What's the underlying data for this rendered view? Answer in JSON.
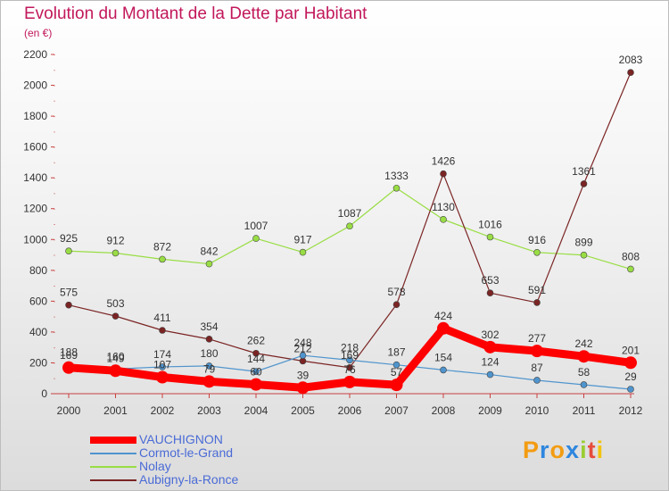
{
  "title": "Evolution du Montant de la Dette par Habitant",
  "subtitle": "(en €)",
  "brand": {
    "letters": [
      "P",
      "r",
      "o",
      "x",
      "i",
      "t",
      "i"
    ],
    "colors": [
      "#f39c12",
      "#2e86de",
      "#f39c12",
      "#2e86de",
      "#9acd32",
      "#e74c3c",
      "#f1c40f"
    ]
  },
  "chart_data": {
    "type": "line",
    "x": [
      "2000",
      "2001",
      "2002",
      "2003",
      "2004",
      "2005",
      "2006",
      "2007",
      "2008",
      "2009",
      "2010",
      "2011",
      "2012"
    ],
    "ylim": [
      0,
      2200
    ],
    "yticks": [
      0,
      200,
      400,
      600,
      800,
      1000,
      1200,
      1400,
      1600,
      1800,
      2000,
      2200
    ],
    "grid": false,
    "legend_position": "bottom-left",
    "series": [
      {
        "name": "VAUCHIGNON",
        "color": "#ff0000",
        "values": [
          169,
          149,
          107,
          79,
          60,
          39,
          76,
          57,
          424,
          302,
          277,
          242,
          201
        ]
      },
      {
        "name": "Cormot-le-Grand",
        "color": "#4f94cd",
        "values": [
          188,
          160,
          174,
          180,
          144,
          248,
          218,
          187,
          154,
          124,
          87,
          58,
          29
        ]
      },
      {
        "name": "Nolay",
        "color": "#99dd44",
        "values": [
          925,
          912,
          872,
          842,
          1007,
          917,
          1087,
          1333,
          1130,
          1016,
          916,
          899,
          808
        ]
      },
      {
        "name": "Aubigny-la-Ronce",
        "color": "#7b2424",
        "values": [
          575,
          503,
          411,
          354,
          262,
          212,
          169,
          578,
          1426,
          653,
          591,
          1361,
          2083
        ]
      }
    ]
  }
}
